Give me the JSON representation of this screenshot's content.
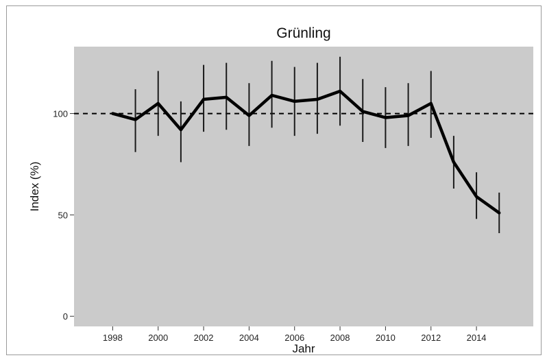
{
  "chart_data": {
    "type": "line",
    "title": "Grünling",
    "xlabel": "Jahr",
    "ylabel": "Index (%)",
    "xlim": [
      1996.3,
      2016.5
    ],
    "ylim": [
      -5,
      133
    ],
    "x_ticks": [
      "1998",
      "2000",
      "2002",
      "2004",
      "2006",
      "2008",
      "2010",
      "2012",
      "2014"
    ],
    "y_ticks": [
      "0",
      "50",
      "100"
    ],
    "reference_line": 100,
    "grid": false,
    "legend": "none",
    "series": [
      {
        "x": [
          1998,
          1999,
          2000,
          2001,
          2002,
          2003,
          2004,
          2005,
          2006,
          2007,
          2008,
          2009,
          2010,
          2011,
          2012,
          2013,
          2014,
          2015
        ],
        "values": [
          100,
          97,
          105,
          92,
          107,
          108,
          99,
          109,
          106,
          107,
          111,
          101,
          98,
          99,
          105,
          76,
          59,
          51
        ],
        "lower": [
          100,
          81,
          89,
          76,
          91,
          92,
          84,
          93,
          89,
          90,
          94,
          86,
          83,
          84,
          88,
          63,
          48,
          41
        ],
        "upper": [
          100,
          112,
          121,
          106,
          124,
          125,
          115,
          126,
          123,
          125,
          128,
          117,
          113,
          115,
          121,
          89,
          71,
          61
        ]
      }
    ],
    "colors": {
      "panel": "#cbcbcb",
      "line": "#000000",
      "figure_bg": "#ffffff",
      "border": "#9a9a9a"
    }
  }
}
